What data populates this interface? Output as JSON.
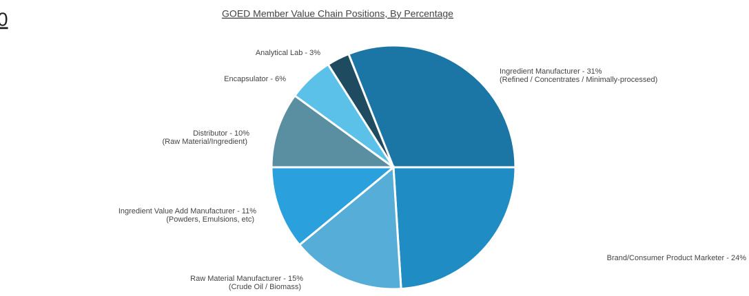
{
  "slide_number": "0",
  "chart_data": {
    "type": "pie",
    "title": "GOED Member Value Chain Positions, By Percentage",
    "values": [
      31,
      24,
      15,
      11,
      10,
      6,
      3
    ],
    "value_labels": [
      "Ingredient Manufacturer - 31%",
      "Brand/Consumer Product Marketer - 24%",
      "Raw Material Manufacturer - 15%",
      "Ingredient Value Add Manufacturer - 11%",
      "Distributor - 10%",
      "Encapsulator - 6%",
      "Analytical Lab - 3%"
    ],
    "notes": [
      "(Refined / Concentrates / Minimally-processed)",
      null,
      "(Crude Oil / Biomass)",
      "(Powders, Emulsions, etc)",
      "(Raw Material/Ingredient)",
      null,
      null
    ],
    "colors": [
      "#1b76a6",
      "#1f8cc4",
      "#56add7",
      "#2aa1dd",
      "#5a8fa1",
      "#5cc1e9",
      "#1f4b61"
    ]
  }
}
